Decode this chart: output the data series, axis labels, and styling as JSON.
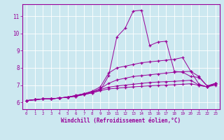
{
  "title": "",
  "xlabel": "Windchill (Refroidissement éolien,°C)",
  "ylabel": "",
  "bg_color": "#cce8f0",
  "line_color": "#990099",
  "marker": "+",
  "x_ticks": [
    0,
    1,
    2,
    3,
    4,
    5,
    6,
    7,
    8,
    9,
    10,
    11,
    12,
    13,
    14,
    15,
    16,
    17,
    18,
    19,
    20,
    21,
    22,
    23
  ],
  "y_ticks": [
    6,
    7,
    8,
    9,
    10,
    11
  ],
  "xlim": [
    -0.5,
    23.5
  ],
  "ylim": [
    5.6,
    11.7
  ],
  "lines": [
    [
      6.1,
      6.15,
      6.2,
      6.2,
      6.25,
      6.3,
      6.35,
      6.45,
      6.55,
      6.7,
      7.55,
      9.8,
      10.3,
      11.3,
      11.35,
      9.3,
      9.5,
      9.55,
      7.8,
      7.75,
      7.5,
      7.45,
      6.95,
      7.1
    ],
    [
      6.1,
      6.15,
      6.2,
      6.2,
      6.25,
      6.3,
      6.4,
      6.5,
      6.65,
      6.9,
      7.7,
      8.0,
      8.1,
      8.2,
      8.3,
      8.35,
      8.4,
      8.45,
      8.5,
      8.6,
      7.8,
      7.5,
      6.95,
      7.1
    ],
    [
      6.1,
      6.15,
      6.2,
      6.2,
      6.25,
      6.3,
      6.4,
      6.5,
      6.6,
      6.8,
      7.1,
      7.3,
      7.4,
      7.5,
      7.55,
      7.6,
      7.65,
      7.7,
      7.75,
      7.78,
      7.8,
      7.05,
      6.9,
      7.1
    ],
    [
      6.1,
      6.15,
      6.2,
      6.2,
      6.25,
      6.3,
      6.38,
      6.5,
      6.6,
      6.75,
      6.88,
      6.95,
      7.0,
      7.05,
      7.1,
      7.15,
      7.18,
      7.2,
      7.22,
      7.25,
      7.28,
      7.0,
      6.9,
      7.05
    ],
    [
      6.1,
      6.15,
      6.2,
      6.2,
      6.25,
      6.3,
      6.35,
      6.45,
      6.55,
      6.68,
      6.78,
      6.82,
      6.86,
      6.9,
      6.93,
      6.96,
      6.98,
      7.0,
      7.02,
      7.05,
      7.08,
      6.98,
      6.9,
      7.0
    ]
  ]
}
